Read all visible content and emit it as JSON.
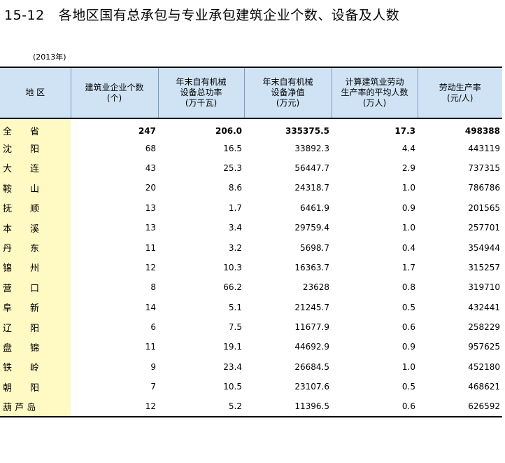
{
  "title": {
    "number": "15-12",
    "text": "各地区国有总承包与专业承包建筑企业个数、设备及人数"
  },
  "year_note": "(2013年)",
  "headers": [
    "地 区",
    "建筑业企业个数\n(个)",
    "年末自有机械\n设备总功率\n(万千瓦)",
    "年末自有机械\n设备净值\n(万元)",
    "计算建筑业劳动\n生产率的平均人数\n(万人)",
    "劳动生产率\n(元/人)"
  ],
  "rows": [
    {
      "region": "全　　省",
      "enterprises": "247",
      "power": "206.0",
      "net_value": "335375.5",
      "avg_people": "17.3",
      "productivity": "498388"
    },
    {
      "region": "沈　　阳",
      "enterprises": "68",
      "power": "16.5",
      "net_value": "33892.3",
      "avg_people": "4.4",
      "productivity": "443119"
    },
    {
      "region": "大　　连",
      "enterprises": "43",
      "power": "25.3",
      "net_value": "56447.7",
      "avg_people": "2.9",
      "productivity": "737315"
    },
    {
      "region": "鞍　　山",
      "enterprises": "20",
      "power": "8.6",
      "net_value": "24318.7",
      "avg_people": "1.0",
      "productivity": "786786"
    },
    {
      "region": "抚　　顺",
      "enterprises": "13",
      "power": "1.7",
      "net_value": "6461.9",
      "avg_people": "0.9",
      "productivity": "201565"
    },
    {
      "region": "本　　溪",
      "enterprises": "13",
      "power": "3.4",
      "net_value": "29759.4",
      "avg_people": "1.0",
      "productivity": "257701"
    },
    {
      "region": "丹　　东",
      "enterprises": "11",
      "power": "3.2",
      "net_value": "5698.7",
      "avg_people": "0.4",
      "productivity": "354944"
    },
    {
      "region": "锦　　州",
      "enterprises": "12",
      "power": "10.3",
      "net_value": "16363.7",
      "avg_people": "1.7",
      "productivity": "315257"
    },
    {
      "region": "营　　口",
      "enterprises": "8",
      "power": "66.2",
      "net_value": "23628",
      "avg_people": "0.8",
      "productivity": "319710"
    },
    {
      "region": "阜　　新",
      "enterprises": "14",
      "power": "5.1",
      "net_value": "21245.7",
      "avg_people": "0.5",
      "productivity": "432441"
    },
    {
      "region": "辽　　阳",
      "enterprises": "6",
      "power": "7.5",
      "net_value": "11677.9",
      "avg_people": "0.6",
      "productivity": "258229"
    },
    {
      "region": "盘　　锦",
      "enterprises": "11",
      "power": "19.1",
      "net_value": "44692.9",
      "avg_people": "0.9",
      "productivity": "957625"
    },
    {
      "region": "铁　　岭",
      "enterprises": "9",
      "power": "23.4",
      "net_value": "26684.5",
      "avg_people": "1.0",
      "productivity": "452180"
    },
    {
      "region": "朝　　阳",
      "enterprises": "7",
      "power": "10.5",
      "net_value": "23107.6",
      "avg_people": "0.5",
      "productivity": "468621"
    },
    {
      "region": "葫 芦 岛",
      "enterprises": "12",
      "power": "5.2",
      "net_value": "11396.5",
      "avg_people": "0.6",
      "productivity": "626592"
    }
  ]
}
